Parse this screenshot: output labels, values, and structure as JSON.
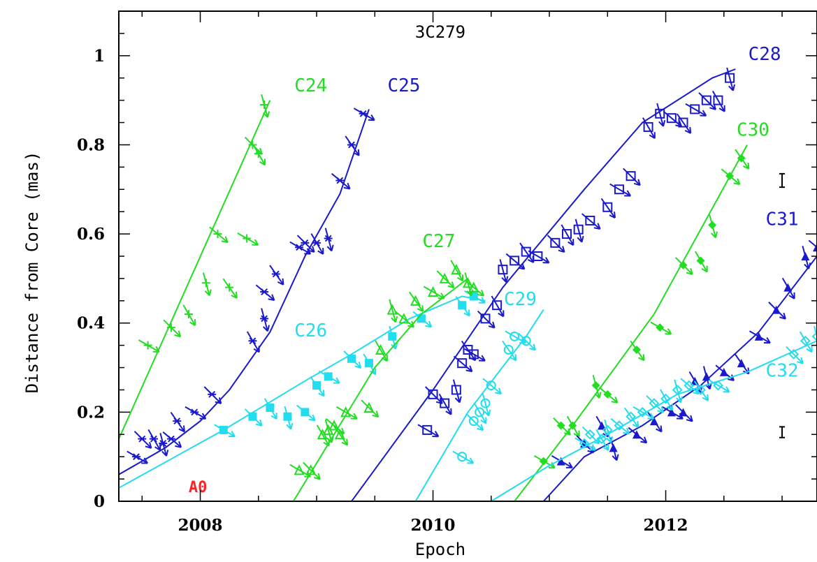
{
  "chart_data": {
    "type": "line",
    "title": "3C279",
    "xlabel": "Epoch",
    "ylabel": "Distance from Core (mas)",
    "xlim": [
      2007.3,
      2013.3
    ],
    "ylim": [
      0,
      1.1
    ],
    "xticks": [
      2008,
      2010,
      2012
    ],
    "yticks": [
      0,
      0.2,
      0.4,
      0.6,
      0.8,
      1
    ],
    "ytick_labels": [
      "0",
      "0.2",
      "0.4",
      "0.6",
      "0.8",
      "1"
    ],
    "grid": false,
    "colors": {
      "green": "#22dd22",
      "blue": "#1a1acc",
      "cyan": "#22ddee",
      "red": "#ff2222"
    },
    "core": {
      "name": "A0",
      "color": "#ff2222",
      "y": 0
    },
    "error_bars": [
      {
        "x": 2013.0,
        "y": 0.72,
        "err": 0.015
      },
      {
        "x": 2013.0,
        "y": 0.155,
        "err": 0.012
      }
    ],
    "series": [
      {
        "name": "C24",
        "color": "#22dd22",
        "label_pos": [
          2008.95,
          0.92
        ],
        "marker": "plus",
        "path": [
          [
            2007.3,
            0.14
          ],
          [
            2008.6,
            0.9
          ]
        ],
        "points": [
          [
            2007.55,
            0.35
          ],
          [
            2007.75,
            0.39
          ],
          [
            2007.9,
            0.42
          ],
          [
            2008.05,
            0.49
          ],
          [
            2008.15,
            0.6
          ],
          [
            2008.25,
            0.48
          ],
          [
            2008.4,
            0.59
          ],
          [
            2008.45,
            0.8
          ],
          [
            2008.5,
            0.78
          ],
          [
            2008.55,
            0.89
          ]
        ]
      },
      {
        "name": "C25",
        "color": "#1a1acc",
        "label_pos": [
          2009.75,
          0.92
        ],
        "marker": "star",
        "path": [
          [
            2007.3,
            0.06
          ],
          [
            2007.7,
            0.12
          ],
          [
            2008.0,
            0.18
          ],
          [
            2008.25,
            0.25
          ],
          [
            2008.6,
            0.38
          ],
          [
            2008.9,
            0.55
          ],
          [
            2009.2,
            0.69
          ],
          [
            2009.45,
            0.88
          ]
        ],
        "points": [
          [
            2007.45,
            0.1
          ],
          [
            2007.5,
            0.14
          ],
          [
            2007.6,
            0.14
          ],
          [
            2007.68,
            0.13
          ],
          [
            2007.75,
            0.14
          ],
          [
            2007.8,
            0.18
          ],
          [
            2007.95,
            0.2
          ],
          [
            2008.1,
            0.24
          ],
          [
            2008.45,
            0.36
          ],
          [
            2008.55,
            0.41
          ],
          [
            2008.55,
            0.47
          ],
          [
            2008.65,
            0.51
          ],
          [
            2008.85,
            0.57
          ],
          [
            2008.9,
            0.58
          ],
          [
            2009.0,
            0.58
          ],
          [
            2009.1,
            0.59
          ],
          [
            2009.2,
            0.72
          ],
          [
            2009.3,
            0.8
          ],
          [
            2009.4,
            0.87
          ]
        ]
      },
      {
        "name": "C26",
        "color": "#22ddee",
        "label_pos": [
          2008.95,
          0.37
        ],
        "marker": "filled-square",
        "path": [
          [
            2007.3,
            0.03
          ],
          [
            2008.2,
            0.16
          ],
          [
            2008.9,
            0.27
          ],
          [
            2009.3,
            0.33
          ],
          [
            2009.8,
            0.41
          ],
          [
            2010.25,
            0.46
          ],
          [
            2010.45,
            0.45
          ]
        ],
        "points": [
          [
            2008.2,
            0.16
          ],
          [
            2008.45,
            0.19
          ],
          [
            2008.6,
            0.21
          ],
          [
            2008.75,
            0.19
          ],
          [
            2008.9,
            0.2
          ],
          [
            2009.0,
            0.26
          ],
          [
            2009.1,
            0.28
          ],
          [
            2009.3,
            0.32
          ],
          [
            2009.45,
            0.31
          ],
          [
            2009.65,
            0.37
          ],
          [
            2009.9,
            0.41
          ],
          [
            2010.25,
            0.44
          ],
          [
            2010.35,
            0.46
          ]
        ]
      },
      {
        "name": "C27",
        "color": "#22dd22",
        "label_pos": [
          2010.05,
          0.57
        ],
        "marker": "open-triangle",
        "path": [
          [
            2008.8,
            0.0
          ],
          [
            2009.5,
            0.3
          ],
          [
            2009.9,
            0.42
          ],
          [
            2010.3,
            0.5
          ]
        ],
        "points": [
          [
            2008.85,
            0.07
          ],
          [
            2008.95,
            0.07
          ],
          [
            2009.05,
            0.15
          ],
          [
            2009.1,
            0.16
          ],
          [
            2009.15,
            0.17
          ],
          [
            2009.2,
            0.15
          ],
          [
            2009.25,
            0.2
          ],
          [
            2009.45,
            0.21
          ],
          [
            2009.55,
            0.34
          ],
          [
            2009.65,
            0.43
          ],
          [
            2009.75,
            0.41
          ],
          [
            2009.85,
            0.45
          ],
          [
            2010.0,
            0.47
          ],
          [
            2010.1,
            0.5
          ],
          [
            2010.2,
            0.52
          ],
          [
            2010.3,
            0.49
          ],
          [
            2010.35,
            0.48
          ]
        ]
      },
      {
        "name": "C28",
        "color": "#1a1acc",
        "label_pos": [
          2012.85,
          0.99
        ],
        "marker": "open-square",
        "path": [
          [
            2009.3,
            0.0
          ],
          [
            2010.0,
            0.25
          ],
          [
            2010.6,
            0.48
          ],
          [
            2011.3,
            0.7
          ],
          [
            2011.8,
            0.85
          ],
          [
            2012.4,
            0.95
          ],
          [
            2012.6,
            0.97
          ]
        ],
        "points": [
          [
            2009.95,
            0.16
          ],
          [
            2010.0,
            0.24
          ],
          [
            2010.1,
            0.22
          ],
          [
            2010.2,
            0.25
          ],
          [
            2010.25,
            0.31
          ],
          [
            2010.3,
            0.34
          ],
          [
            2010.35,
            0.33
          ],
          [
            2010.45,
            0.41
          ],
          [
            2010.55,
            0.44
          ],
          [
            2010.6,
            0.52
          ],
          [
            2010.7,
            0.54
          ],
          [
            2010.8,
            0.56
          ],
          [
            2010.9,
            0.55
          ],
          [
            2011.05,
            0.58
          ],
          [
            2011.15,
            0.6
          ],
          [
            2011.25,
            0.61
          ],
          [
            2011.35,
            0.63
          ],
          [
            2011.5,
            0.66
          ],
          [
            2011.6,
            0.7
          ],
          [
            2011.7,
            0.73
          ],
          [
            2011.85,
            0.84
          ],
          [
            2011.95,
            0.87
          ],
          [
            2012.05,
            0.86
          ],
          [
            2012.15,
            0.85
          ],
          [
            2012.25,
            0.88
          ],
          [
            2012.35,
            0.9
          ],
          [
            2012.45,
            0.9
          ],
          [
            2012.55,
            0.95
          ]
        ]
      },
      {
        "name": "C29",
        "color": "#22ddee",
        "label_pos": [
          2010.75,
          0.44
        ],
        "marker": "open-circle",
        "path": [
          [
            2009.85,
            0.0
          ],
          [
            2010.3,
            0.2
          ],
          [
            2010.8,
            0.37
          ],
          [
            2010.95,
            0.43
          ]
        ],
        "points": [
          [
            2010.25,
            0.1
          ],
          [
            2010.35,
            0.18
          ],
          [
            2010.4,
            0.2
          ],
          [
            2010.45,
            0.22
          ],
          [
            2010.5,
            0.26
          ],
          [
            2010.65,
            0.34
          ],
          [
            2010.7,
            0.37
          ],
          [
            2010.8,
            0.36
          ]
        ]
      },
      {
        "name": "C30",
        "color": "#22dd22",
        "label_pos": [
          2012.75,
          0.82
        ],
        "marker": "filled-diamond",
        "path": [
          [
            2010.7,
            0.0
          ],
          [
            2011.2,
            0.17
          ],
          [
            2011.9,
            0.42
          ],
          [
            2012.7,
            0.8
          ]
        ],
        "points": [
          [
            2010.95,
            0.09
          ],
          [
            2011.1,
            0.17
          ],
          [
            2011.2,
            0.17
          ],
          [
            2011.4,
            0.26
          ],
          [
            2011.5,
            0.24
          ],
          [
            2011.75,
            0.34
          ],
          [
            2011.95,
            0.39
          ],
          [
            2012.15,
            0.53
          ],
          [
            2012.3,
            0.54
          ],
          [
            2012.4,
            0.62
          ],
          [
            2012.55,
            0.73
          ],
          [
            2012.65,
            0.77
          ]
        ]
      },
      {
        "name": "C31",
        "color": "#1a1acc",
        "label_pos": [
          2013.0,
          0.62
        ],
        "marker": "filled-triangle",
        "path": [
          [
            2010.95,
            0.0
          ],
          [
            2011.3,
            0.1
          ],
          [
            2011.8,
            0.17
          ],
          [
            2012.3,
            0.26
          ],
          [
            2012.8,
            0.38
          ],
          [
            2013.3,
            0.55
          ]
        ],
        "points": [
          [
            2011.1,
            0.09
          ],
          [
            2011.3,
            0.13
          ],
          [
            2011.45,
            0.17
          ],
          [
            2011.55,
            0.12
          ],
          [
            2011.75,
            0.15
          ],
          [
            2011.9,
            0.18
          ],
          [
            2012.05,
            0.2
          ],
          [
            2012.15,
            0.2
          ],
          [
            2012.25,
            0.27
          ],
          [
            2012.35,
            0.28
          ],
          [
            2012.5,
            0.29
          ],
          [
            2012.65,
            0.31
          ],
          [
            2012.8,
            0.37
          ],
          [
            2012.95,
            0.43
          ],
          [
            2013.05,
            0.48
          ],
          [
            2013.2,
            0.55
          ],
          [
            2013.3,
            0.57
          ]
        ]
      },
      {
        "name": "C32",
        "color": "#22ddee",
        "label_pos": [
          2013.0,
          0.28
        ],
        "marker": "open-diamond",
        "path": [
          [
            2010.5,
            0.0
          ],
          [
            2011.0,
            0.08
          ],
          [
            2011.5,
            0.15
          ],
          [
            2012.1,
            0.24
          ],
          [
            2012.7,
            0.29
          ],
          [
            2013.3,
            0.36
          ]
        ],
        "points": [
          [
            2011.3,
            0.13
          ],
          [
            2011.35,
            0.15
          ],
          [
            2011.45,
            0.14
          ],
          [
            2011.5,
            0.16
          ],
          [
            2011.6,
            0.17
          ],
          [
            2011.7,
            0.19
          ],
          [
            2011.8,
            0.2
          ],
          [
            2011.9,
            0.22
          ],
          [
            2012.0,
            0.23
          ],
          [
            2012.1,
            0.25
          ],
          [
            2012.2,
            0.26
          ],
          [
            2012.3,
            0.25
          ],
          [
            2012.45,
            0.26
          ],
          [
            2013.1,
            0.33
          ],
          [
            2013.2,
            0.36
          ],
          [
            2013.3,
            0.37
          ]
        ]
      }
    ]
  }
}
